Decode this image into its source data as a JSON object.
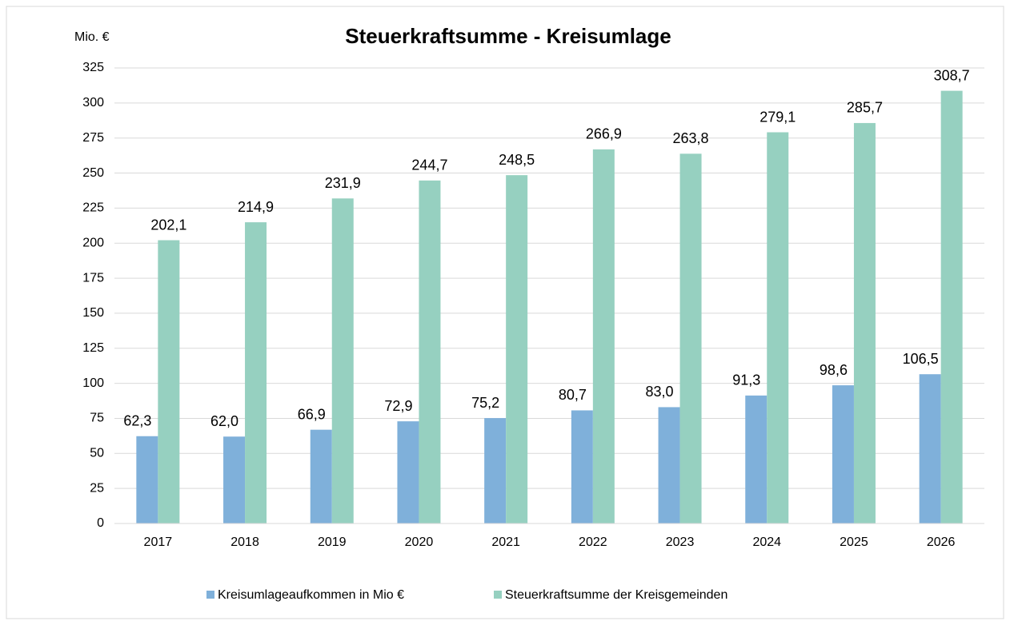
{
  "chart_data": {
    "type": "bar",
    "title": "Steuerkraftsumme - Kreisumlage",
    "y_label": "Mio. €",
    "categories": [
      "2017",
      "2018",
      "2019",
      "2020",
      "2021",
      "2022",
      "2023",
      "2024",
      "2025",
      "2026"
    ],
    "series": [
      {
        "name": "Kreisumlageaufkommen in Mio €",
        "color": "#7fb0da",
        "values": [
          62.3,
          62.0,
          66.9,
          72.9,
          75.2,
          80.7,
          83.0,
          91.3,
          98.6,
          106.5
        ],
        "value_labels": [
          "62,3",
          "62,0",
          "66,9",
          "72,9",
          "75,2",
          "80,7",
          "83,0",
          "91,3",
          "98,6",
          "106,5"
        ]
      },
      {
        "name": "Steuerkraftsumme der Kreisgemeinden",
        "color": "#96d0c0",
        "values": [
          202.1,
          214.9,
          231.9,
          244.7,
          248.5,
          266.9,
          263.8,
          279.1,
          285.7,
          308.7
        ],
        "value_labels": [
          "202,1",
          "214,9",
          "231,9",
          "244,7",
          "248,5",
          "266,9",
          "263,8",
          "279,1",
          "285,7",
          "308,7"
        ]
      }
    ],
    "ylim": [
      0,
      325
    ],
    "yticks": [
      0,
      25,
      50,
      75,
      100,
      125,
      150,
      175,
      200,
      225,
      250,
      275,
      300,
      325
    ],
    "grid": true,
    "legend": "bottom"
  }
}
